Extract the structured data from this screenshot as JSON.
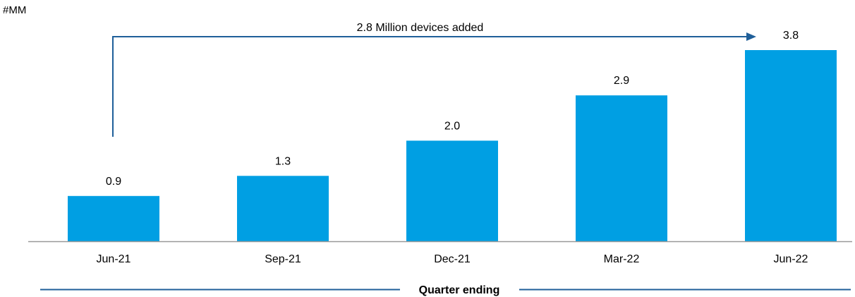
{
  "chart_data": {
    "type": "bar",
    "unit_label": "#MM",
    "categories": [
      "Jun-21",
      "Sep-21",
      "Dec-21",
      "Mar-22",
      "Jun-22"
    ],
    "values": [
      0.9,
      1.3,
      2.0,
      2.9,
      3.8
    ],
    "data_labels": [
      "0.9",
      "1.3",
      "2.0",
      "2.9",
      "3.8"
    ],
    "ylim": [
      0,
      4.2
    ],
    "xlabel": "Quarter ending",
    "annotation": {
      "text": "2.8 Million devices added",
      "from_category": "Jun-21",
      "to_category": "Jun-22"
    },
    "grid": false,
    "colors": {
      "bar": "#009fe3",
      "annotation_line": "#1f5f99",
      "axis": "#999999",
      "xlabel_rule": "#1f5f99"
    }
  }
}
